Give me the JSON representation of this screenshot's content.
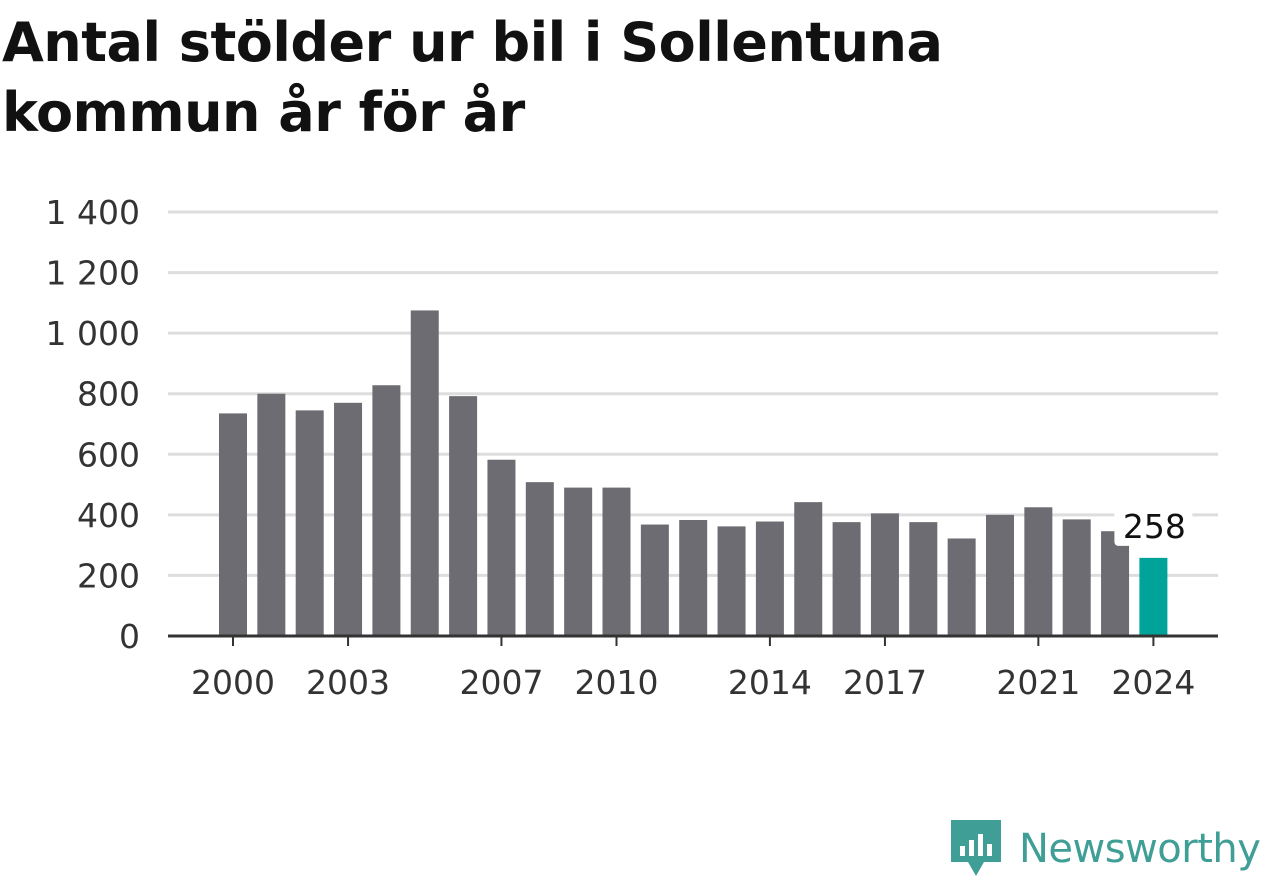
{
  "title": "Antal stölder ur bil i Sollentuna kommun år för år",
  "brand": {
    "name": "Newsworthy",
    "icon": "newsworthy-logo-icon",
    "color": "#3f9e96"
  },
  "chart_data": {
    "type": "bar",
    "title": "Antal stölder ur bil i Sollentuna kommun år för år",
    "xlabel": "",
    "ylabel": "",
    "categories": [
      "2000",
      "2001",
      "2002",
      "2003",
      "2004",
      "2005",
      "2006",
      "2007",
      "2008",
      "2009",
      "2010",
      "2011",
      "2012",
      "2013",
      "2014",
      "2015",
      "2016",
      "2017",
      "2018",
      "2019",
      "2020",
      "2021",
      "2022",
      "2023",
      "2024"
    ],
    "values": [
      735,
      800,
      745,
      770,
      828,
      1075,
      792,
      582,
      508,
      490,
      490,
      368,
      383,
      362,
      378,
      442,
      376,
      405,
      376,
      322,
      400,
      425,
      385,
      346,
      258
    ],
    "ylim": [
      0,
      1400
    ],
    "y_ticks": [
      0,
      200,
      400,
      600,
      800,
      1000,
      1200,
      1400
    ],
    "y_tick_labels": [
      "0",
      "200",
      "400",
      "600",
      "800",
      "1 000",
      "1 200",
      "1 400"
    ],
    "x_tick_labels": [
      "2000",
      "2003",
      "2007",
      "2010",
      "2014",
      "2017",
      "2021",
      "2024"
    ],
    "highlight": {
      "category": "2024",
      "label": "258"
    },
    "colors": {
      "bar": "#6d6c72",
      "highlight": "#00a39a",
      "grid": "#dddddd",
      "axis": "#333333"
    },
    "grid": true,
    "legend": "none"
  }
}
